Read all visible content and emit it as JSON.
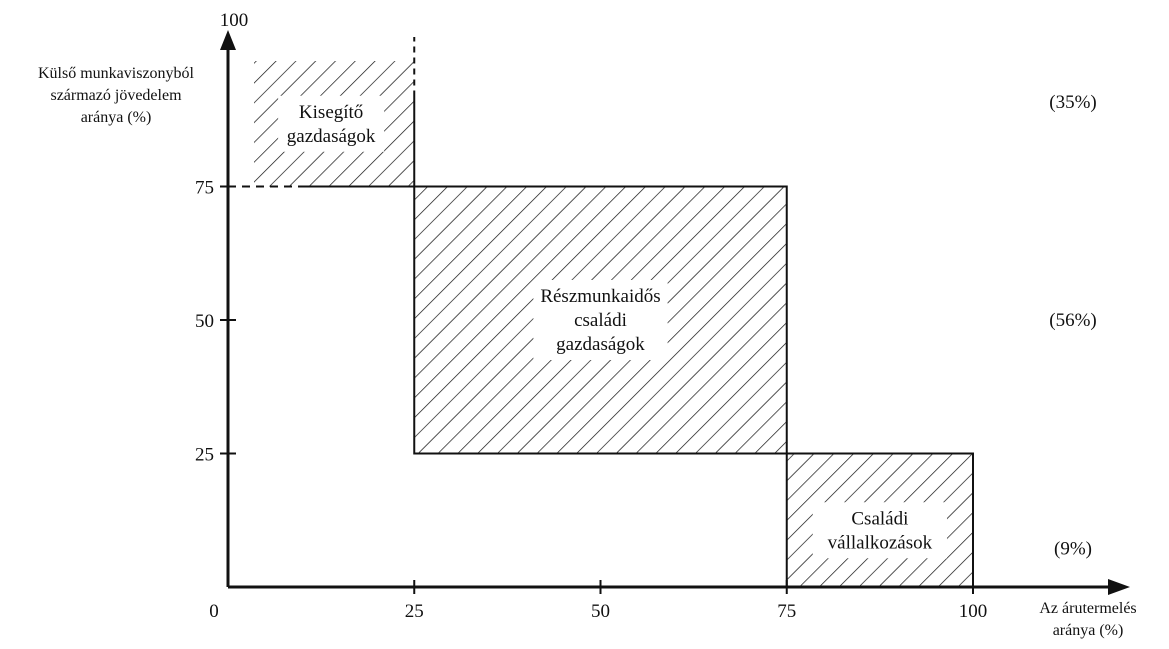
{
  "chart_data": {
    "type": "area",
    "title": "",
    "xlabel": [
      "Az árutermelés",
      "aránya (%)"
    ],
    "ylabel": [
      "Külső munkaviszonyból",
      "származó jövedelem",
      "aránya (%)"
    ],
    "xlim": [
      0,
      100
    ],
    "ylim": [
      0,
      100
    ],
    "x_ticks": [
      "0",
      "25",
      "50",
      "75",
      "100"
    ],
    "y_ticks": [
      "25",
      "50",
      "75",
      "100"
    ],
    "regions": [
      {
        "name": [
          "Kisegítő",
          "gazdaságok"
        ],
        "x": [
          0,
          25
        ],
        "y": [
          75,
          100
        ],
        "share": "(35%)"
      },
      {
        "name": [
          "Részmunkaidős",
          "családi",
          "gazdaságok"
        ],
        "x": [
          25,
          75
        ],
        "y": [
          25,
          75
        ],
        "share": "(56%)"
      },
      {
        "name": [
          "Családi",
          "vállalkozások"
        ],
        "x": [
          75,
          100
        ],
        "y": [
          0,
          25
        ],
        "share": "(9%)"
      }
    ]
  }
}
